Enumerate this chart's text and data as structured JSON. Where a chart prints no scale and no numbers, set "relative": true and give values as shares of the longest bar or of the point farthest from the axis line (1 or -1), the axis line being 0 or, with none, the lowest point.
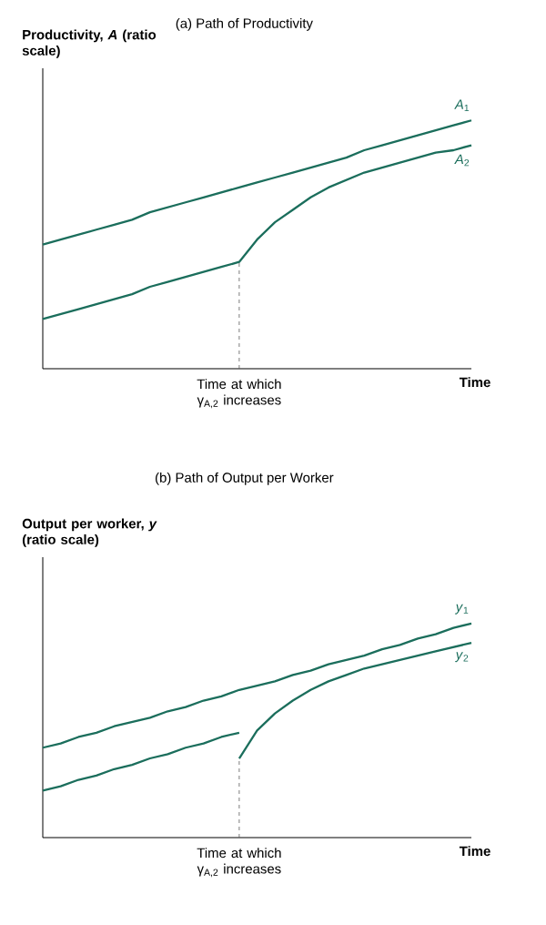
{
  "chart_data": [
    {
      "type": "line",
      "title": "(a) Path of Productivity",
      "ylabel": "Productivity, *A* (ratio scale)",
      "xlabel": "Time",
      "relative": true,
      "categories": [
        null,
        null,
        null,
        null,
        null,
        null,
        null,
        null,
        null,
        null,
        null,
        null,
        null,
        null,
        null,
        null,
        null,
        null,
        null,
        null,
        null,
        null,
        null,
        null,
        null
      ],
      "series": [
        {
          "name": "*A*$_{1}$",
          "color": "#1b6e5c",
          "values": [
            0.5,
            0.52,
            0.54,
            0.56,
            0.58,
            0.6,
            0.63,
            0.65,
            0.67,
            0.69,
            0.71,
            0.73,
            0.75,
            0.77,
            0.79,
            0.81,
            0.83,
            0.85,
            0.88,
            0.9,
            0.92,
            0.94,
            0.96,
            0.98,
            1.0
          ]
        },
        {
          "name": "*A*$_{2}$",
          "color": "#1b6e5c",
          "values": [
            0.2,
            0.22,
            0.24,
            0.26,
            0.28,
            0.3,
            0.33,
            0.35,
            0.37,
            0.39,
            0.41,
            0.43,
            0.52,
            0.59,
            0.64,
            0.69,
            0.73,
            0.76,
            0.79,
            0.81,
            0.83,
            0.85,
            0.87,
            0.88,
            0.9
          ]
        }
      ],
      "annotations": [
        "Time at which γ$_{A,2}$ increases"
      ]
    },
    {
      "type": "line",
      "title": "(b) Path of Output per Worker",
      "ylabel": "Output per worker, *y* (ratio scale)",
      "xlabel": "Time",
      "relative": true,
      "categories": [
        null,
        null,
        null,
        null,
        null,
        null,
        null,
        null,
        null,
        null,
        null,
        null,
        null,
        null,
        null,
        null,
        null,
        null,
        null,
        null,
        null,
        null,
        null,
        null,
        null
      ],
      "series": [
        {
          "name": "*y*$_{1}$",
          "color": "#1b6e5c",
          "values": [
            0.42,
            0.44,
            0.47,
            0.49,
            0.52,
            0.54,
            0.56,
            0.59,
            0.61,
            0.64,
            0.66,
            0.69,
            0.71,
            0.73,
            0.76,
            0.78,
            0.81,
            0.83,
            0.85,
            0.88,
            0.9,
            0.93,
            0.95,
            0.98,
            1.0
          ]
        },
        {
          "color": "#1b6e5c",
          "values": [
            0.22,
            0.24,
            0.27,
            0.29,
            0.32,
            0.34,
            0.37,
            0.39,
            0.42,
            0.44,
            0.47,
            0.49,
            null,
            null,
            null,
            null,
            null,
            null,
            null,
            null,
            null,
            null,
            null,
            null,
            null
          ]
        },
        {
          "name": "*y*$_{2}$",
          "color": "#1b6e5c",
          "values": [
            null,
            null,
            null,
            null,
            null,
            null,
            null,
            null,
            null,
            null,
            null,
            0.37,
            0.5,
            0.58,
            0.64,
            0.69,
            0.73,
            0.76,
            0.79,
            0.81,
            0.83,
            0.85,
            0.87,
            0.89,
            0.91
          ]
        }
      ],
      "annotations": [
        "Time at which γ$_{A,2}$ increases"
      ]
    }
  ]
}
